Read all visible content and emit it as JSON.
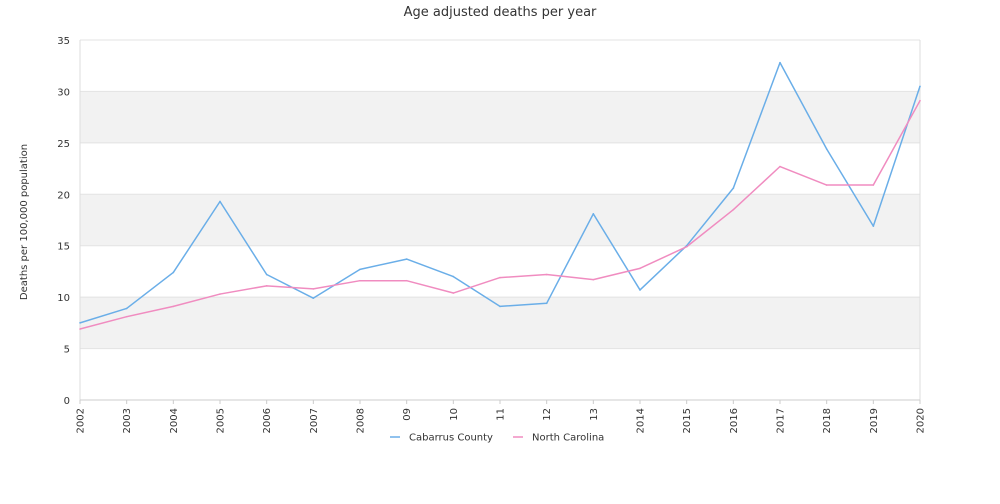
{
  "chart_data": {
    "type": "line",
    "title": "Age adjusted deaths per year",
    "xlabel": "",
    "ylabel": "Deaths per 100,000 population",
    "ylim": [
      0,
      35
    ],
    "yticks": [
      0,
      5,
      10,
      15,
      20,
      25,
      30,
      35
    ],
    "categories": [
      "2002",
      "2003",
      "2004",
      "2005",
      "2006",
      "2007",
      "2008",
      "09",
      "10",
      "11",
      "12",
      "13",
      "2014",
      "2015",
      "2016",
      "2017",
      "2018",
      "2019",
      "2020"
    ],
    "grid": "alternating horizontal bands",
    "legend_position": "bottom",
    "series": [
      {
        "name": "Cabarrus County",
        "color": "#6aaee8",
        "values": [
          7.5,
          8.9,
          12.4,
          19.3,
          12.2,
          9.9,
          12.7,
          13.7,
          12.0,
          9.1,
          9.4,
          18.1,
          10.7,
          15.0,
          20.6,
          32.8,
          24.4,
          16.9,
          30.5
        ]
      },
      {
        "name": "North Carolina",
        "color": "#f08cc0",
        "values": [
          6.9,
          8.1,
          9.1,
          10.3,
          11.1,
          10.8,
          11.6,
          11.6,
          10.4,
          11.9,
          12.2,
          11.7,
          12.8,
          14.9,
          18.5,
          22.7,
          20.9,
          20.9,
          29.1
        ]
      }
    ]
  }
}
